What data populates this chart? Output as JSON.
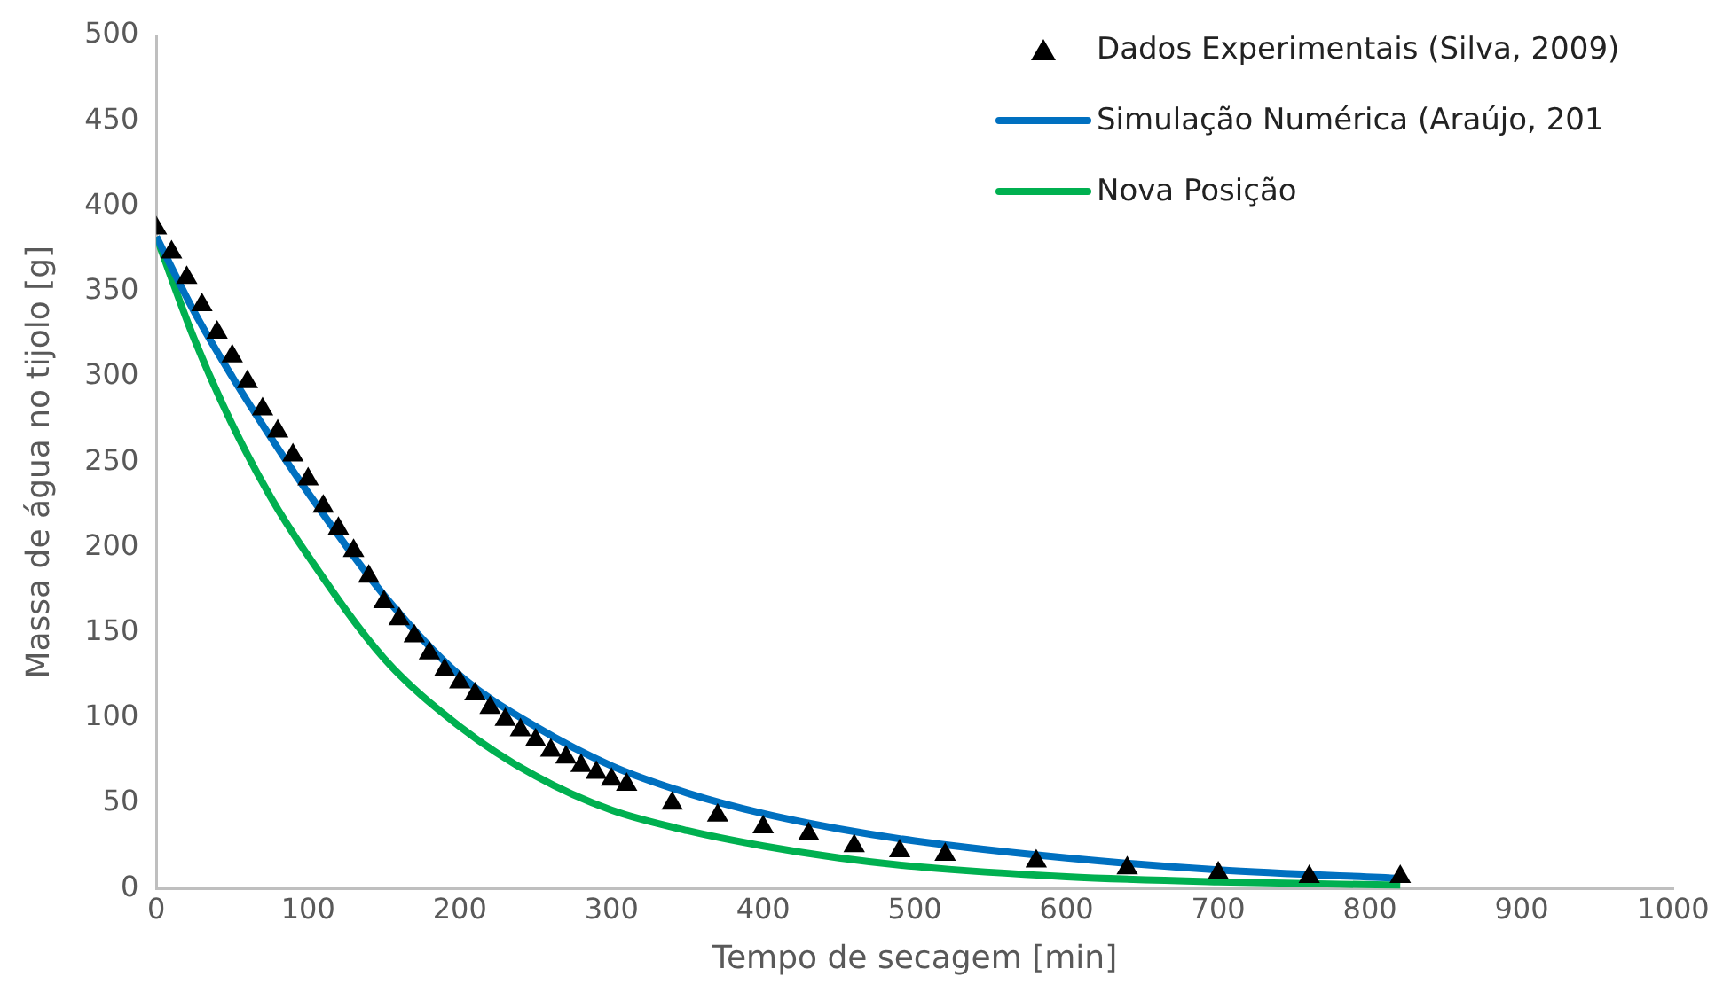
{
  "chart_data": {
    "type": "scatter",
    "xlabel": "Tempo de secagem [min]",
    "ylabel": "Massa de água no tijolo [g]",
    "xlim": [
      0,
      1000
    ],
    "ylim": [
      0,
      500
    ],
    "xticks": [
      0,
      100,
      200,
      300,
      400,
      500,
      600,
      700,
      800,
      900,
      1000
    ],
    "yticks": [
      0,
      50,
      100,
      150,
      200,
      250,
      300,
      350,
      400,
      450,
      500
    ],
    "legend": "top right",
    "series": [
      {
        "name": "Dados Experimentais (Silva, 2009)",
        "marker": "triangle",
        "color": "#000000",
        "x": [
          0,
          10,
          20,
          30,
          40,
          50,
          60,
          70,
          80,
          90,
          100,
          110,
          120,
          130,
          140,
          150,
          160,
          170,
          180,
          190,
          200,
          210,
          220,
          230,
          240,
          250,
          260,
          270,
          280,
          290,
          300,
          310,
          340,
          370,
          400,
          430,
          460,
          490,
          520,
          580,
          640,
          700,
          760,
          820
        ],
        "values": [
          387,
          373,
          358,
          342,
          326,
          312,
          297,
          281,
          268,
          254,
          240,
          224,
          211,
          198,
          183,
          168,
          158,
          148,
          138,
          128,
          121,
          114,
          106,
          99,
          93,
          87,
          81,
          77,
          72,
          68,
          64,
          61,
          50,
          43,
          36,
          32,
          25,
          22,
          20,
          16,
          12,
          9,
          7,
          7
        ]
      },
      {
        "name": "Simulação Numérica (Araújo, 201",
        "type": "line",
        "color": "#0070c0",
        "x": [
          0,
          25,
          50,
          75,
          100,
          150,
          200,
          250,
          300,
          350,
          400,
          450,
          500,
          600,
          700,
          820
        ],
        "values": [
          382,
          338,
          300,
          265,
          232,
          172,
          125,
          95,
          72,
          56,
          44,
          35,
          28,
          18,
          11,
          6
        ]
      },
      {
        "name": "Nova Posição",
        "type": "line",
        "color": "#00b050",
        "x": [
          0,
          25,
          50,
          75,
          100,
          150,
          200,
          250,
          300,
          350,
          400,
          450,
          500,
          600,
          700,
          820
        ],
        "values": [
          382,
          322,
          272,
          230,
          195,
          135,
          95,
          66,
          46,
          34,
          25,
          18,
          13,
          7,
          4,
          2
        ]
      }
    ]
  }
}
